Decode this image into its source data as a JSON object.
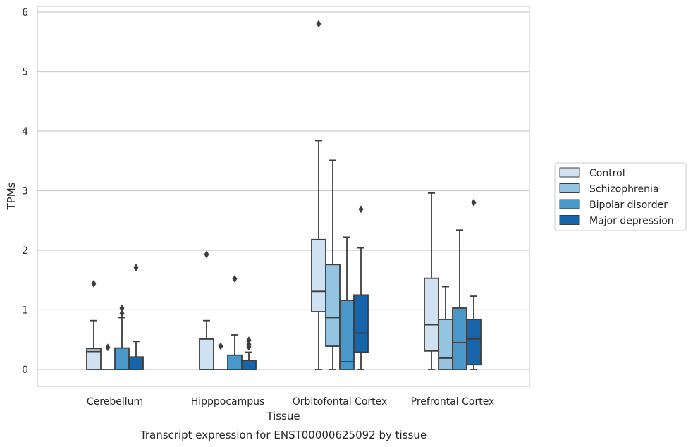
{
  "chart_data": {
    "type": "box",
    "xlabel": "Tissue",
    "ylabel": "TPMs",
    "caption": "Transcript expression for ENST00000625092 by tissue",
    "ylim": [
      -0.28,
      6.1
    ],
    "yticks": [
      0,
      1,
      2,
      3,
      4,
      5,
      6
    ],
    "grid": "horizontal",
    "legend_position": "right",
    "categories": [
      "Cerebellum",
      "Hipppocampus",
      "Orbitofontal Cortex",
      "Prefrontal Cortex"
    ],
    "series": [
      {
        "name": "Control",
        "color": "#d0e1f2",
        "boxes": [
          {
            "low": 0,
            "q1": 0,
            "median": 0.3,
            "q3": 0.35,
            "high": 0.82,
            "outliers": [
              1.44
            ]
          },
          {
            "low": 0,
            "q1": 0,
            "median": 0,
            "q3": 0.51,
            "high": 0.82,
            "outliers": [
              1.93
            ]
          },
          {
            "low": 0,
            "q1": 0.97,
            "median": 1.31,
            "q3": 2.18,
            "high": 3.84,
            "outliers": [
              5.8
            ]
          },
          {
            "low": 0,
            "q1": 0.31,
            "median": 0.75,
            "q3": 1.53,
            "high": 2.96,
            "outliers": []
          }
        ]
      },
      {
        "name": "Schizophrenia",
        "color": "#94c4df",
        "boxes": [
          {
            "low": 0,
            "q1": 0,
            "median": 0,
            "q3": 0,
            "high": 0,
            "outliers": [
              0.37
            ]
          },
          {
            "low": 0,
            "q1": 0,
            "median": 0,
            "q3": 0,
            "high": 0,
            "outliers": [
              0.39
            ]
          },
          {
            "low": 0,
            "q1": 0.39,
            "median": 0.87,
            "q3": 1.76,
            "high": 3.51,
            "outliers": []
          },
          {
            "low": 0,
            "q1": 0,
            "median": 0.19,
            "q3": 0.84,
            "high": 1.39,
            "outliers": []
          }
        ]
      },
      {
        "name": "Bipolar disorder",
        "color": "#4a98c9",
        "boxes": [
          {
            "low": 0,
            "q1": 0,
            "median": 0,
            "q3": 0.36,
            "high": 0.87,
            "outliers": [
              0.94,
              1.03
            ]
          },
          {
            "low": 0,
            "q1": 0,
            "median": 0,
            "q3": 0.24,
            "high": 0.58,
            "outliers": [
              1.52
            ]
          },
          {
            "low": 0,
            "q1": 0,
            "median": 0.13,
            "q3": 1.16,
            "high": 2.22,
            "outliers": []
          },
          {
            "low": 0,
            "q1": 0,
            "median": 0.45,
            "q3": 1.03,
            "high": 2.34,
            "outliers": []
          }
        ]
      },
      {
        "name": "Major depression",
        "color": "#1764ab",
        "boxes": [
          {
            "low": 0,
            "q1": 0,
            "median": 0,
            "q3": 0.21,
            "high": 0.47,
            "outliers": [
              1.71
            ]
          },
          {
            "low": 0,
            "q1": 0,
            "median": 0,
            "q3": 0.15,
            "high": 0.29,
            "outliers": [
              0.38,
              0.42,
              0.49
            ]
          },
          {
            "low": 0,
            "q1": 0.29,
            "median": 0.61,
            "q3": 1.25,
            "high": 2.04,
            "outliers": [
              2.69
            ]
          },
          {
            "low": 0,
            "q1": 0.08,
            "median": 0.51,
            "q3": 0.84,
            "high": 1.23,
            "outliers": [
              2.8
            ]
          }
        ]
      }
    ]
  }
}
